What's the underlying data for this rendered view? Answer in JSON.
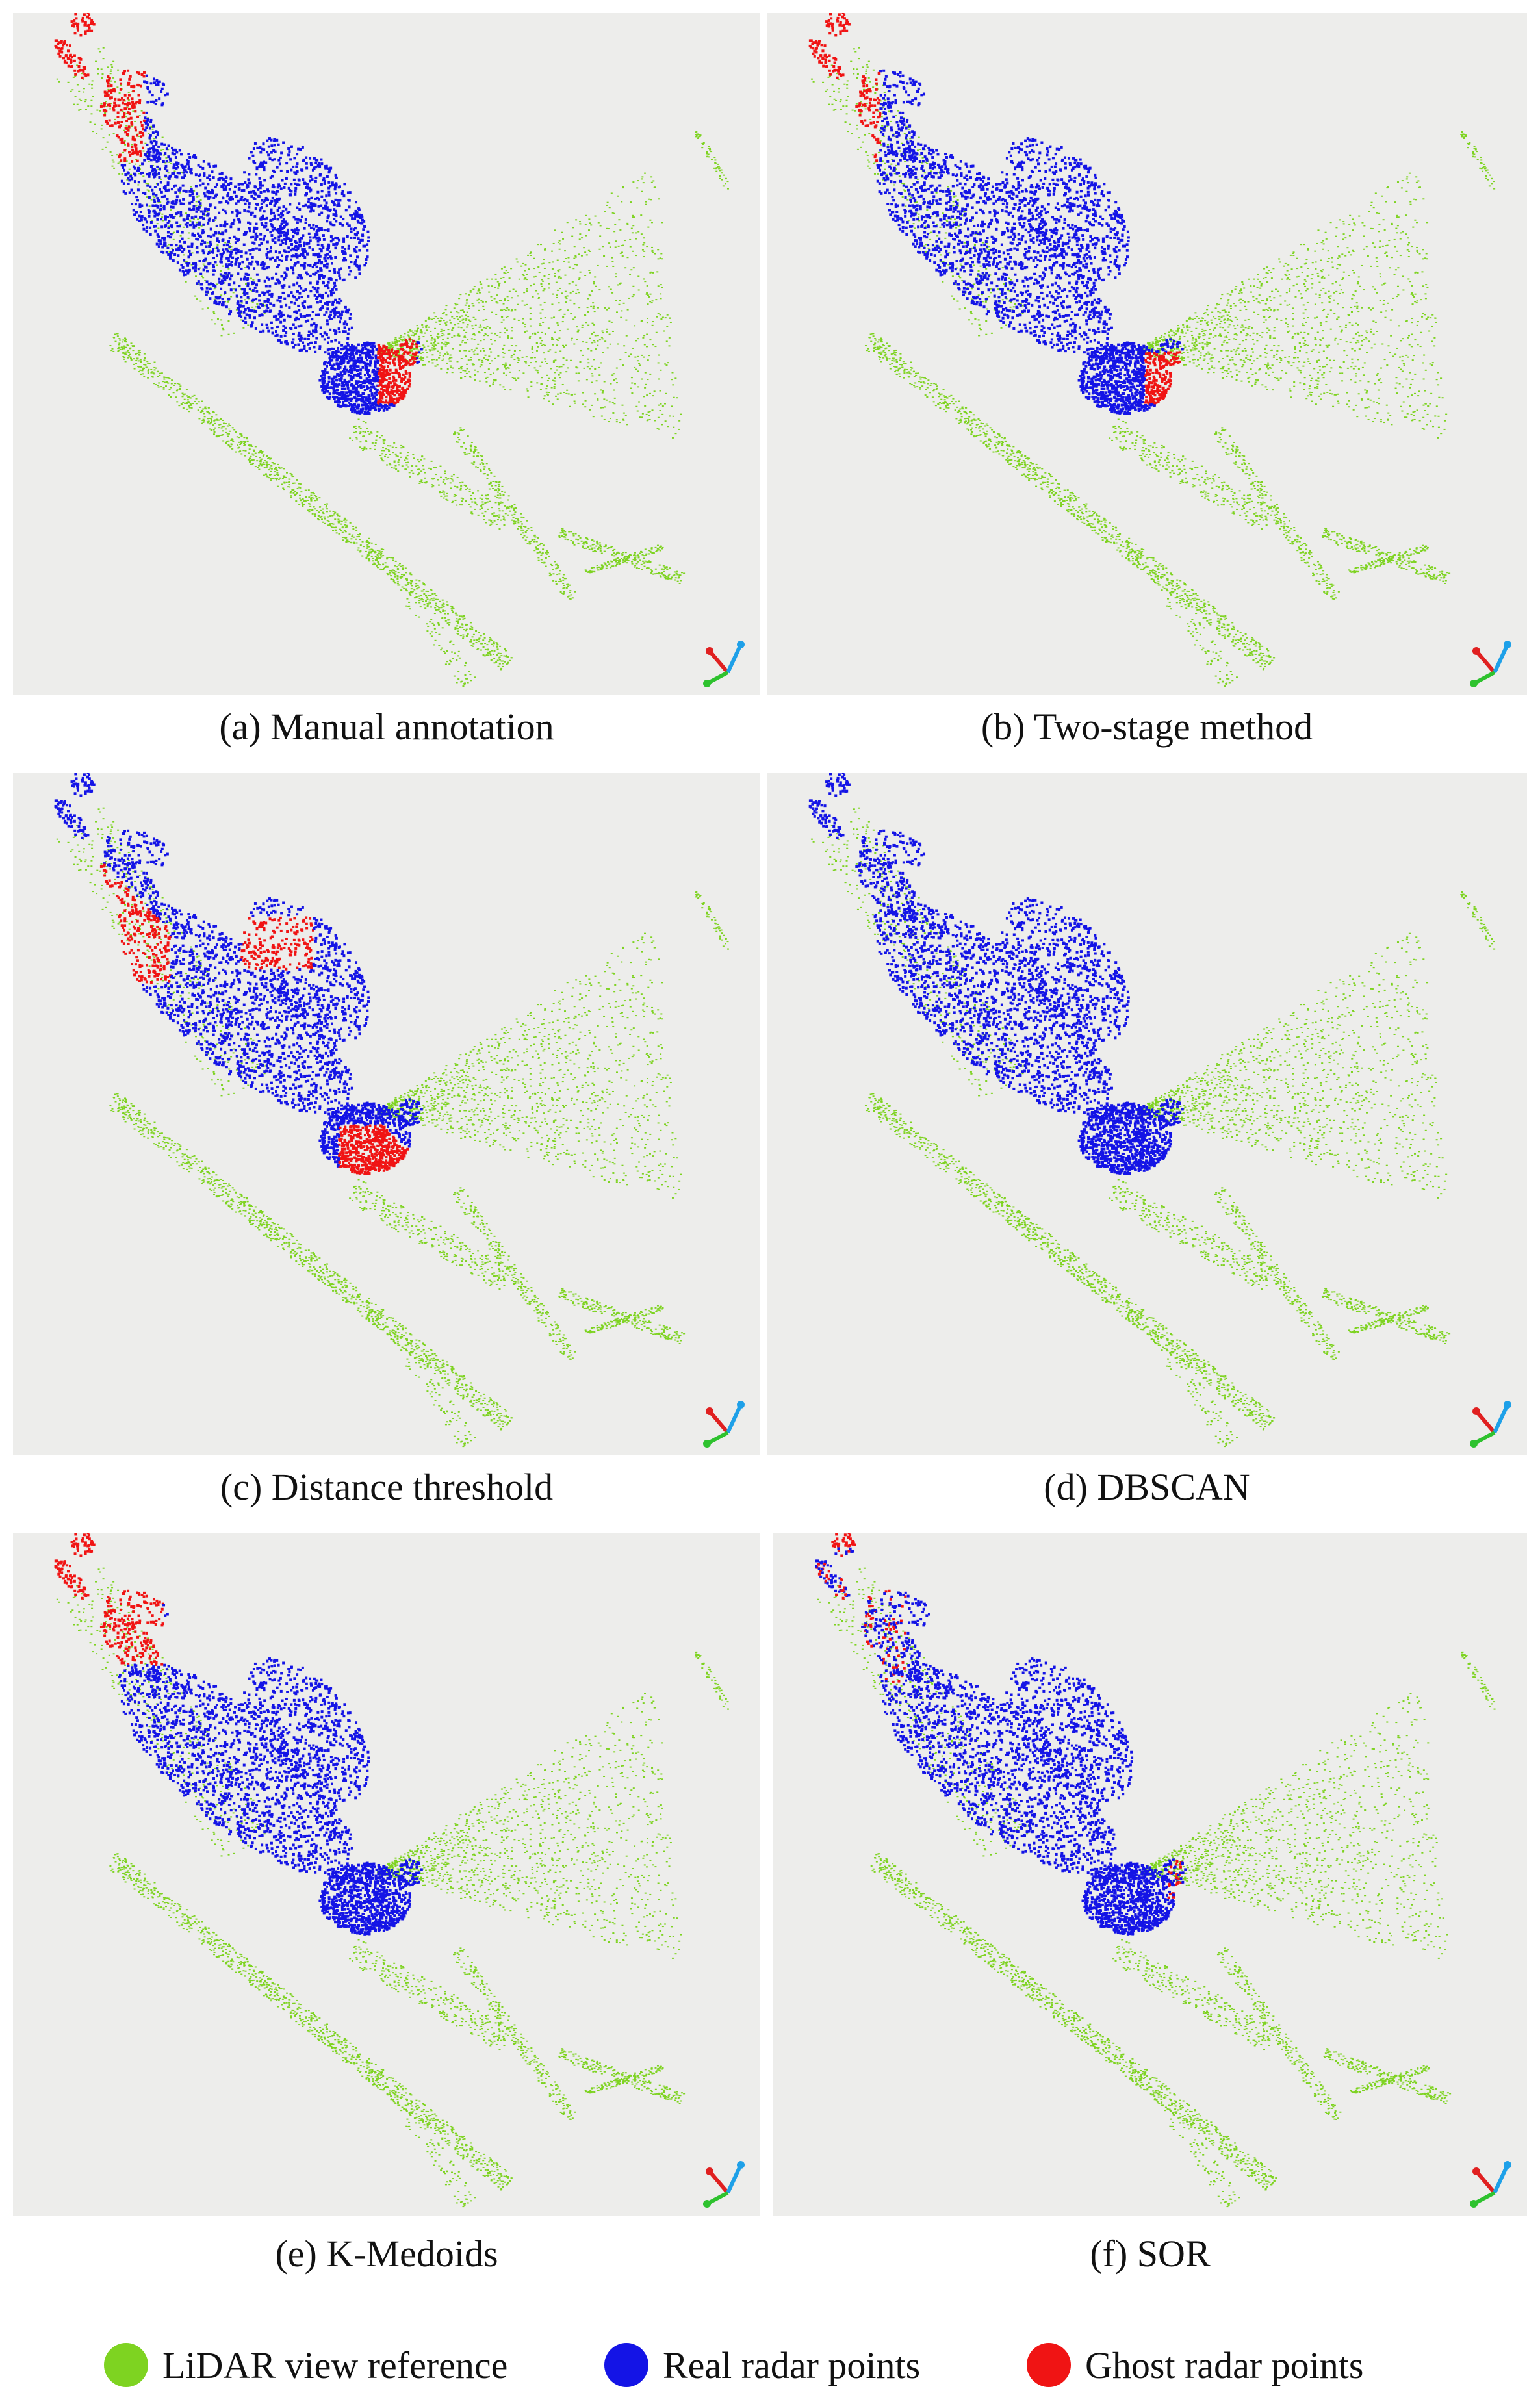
{
  "figure": {
    "panels": [
      {
        "id": "a",
        "caption": "(a) Manual annotation"
      },
      {
        "id": "b",
        "caption": "(b) Two-stage method"
      },
      {
        "id": "c",
        "caption": "(c) Distance threshold"
      },
      {
        "id": "d",
        "caption": "(d) DBSCAN"
      },
      {
        "id": "e",
        "caption": "(e) K-Medoids"
      },
      {
        "id": "f",
        "caption": "(f) SOR"
      }
    ],
    "legend": [
      {
        "label": "LiDAR view reference",
        "color": "#7ed321"
      },
      {
        "label": "Real radar points",
        "color": "#1414e6"
      },
      {
        "label": "Ghost radar points",
        "color": "#f01414"
      }
    ],
    "colors": {
      "lidar": "#7ed321",
      "real": "#1414e6",
      "ghost": "#f01414",
      "panel_bg": "#ededeb"
    }
  }
}
